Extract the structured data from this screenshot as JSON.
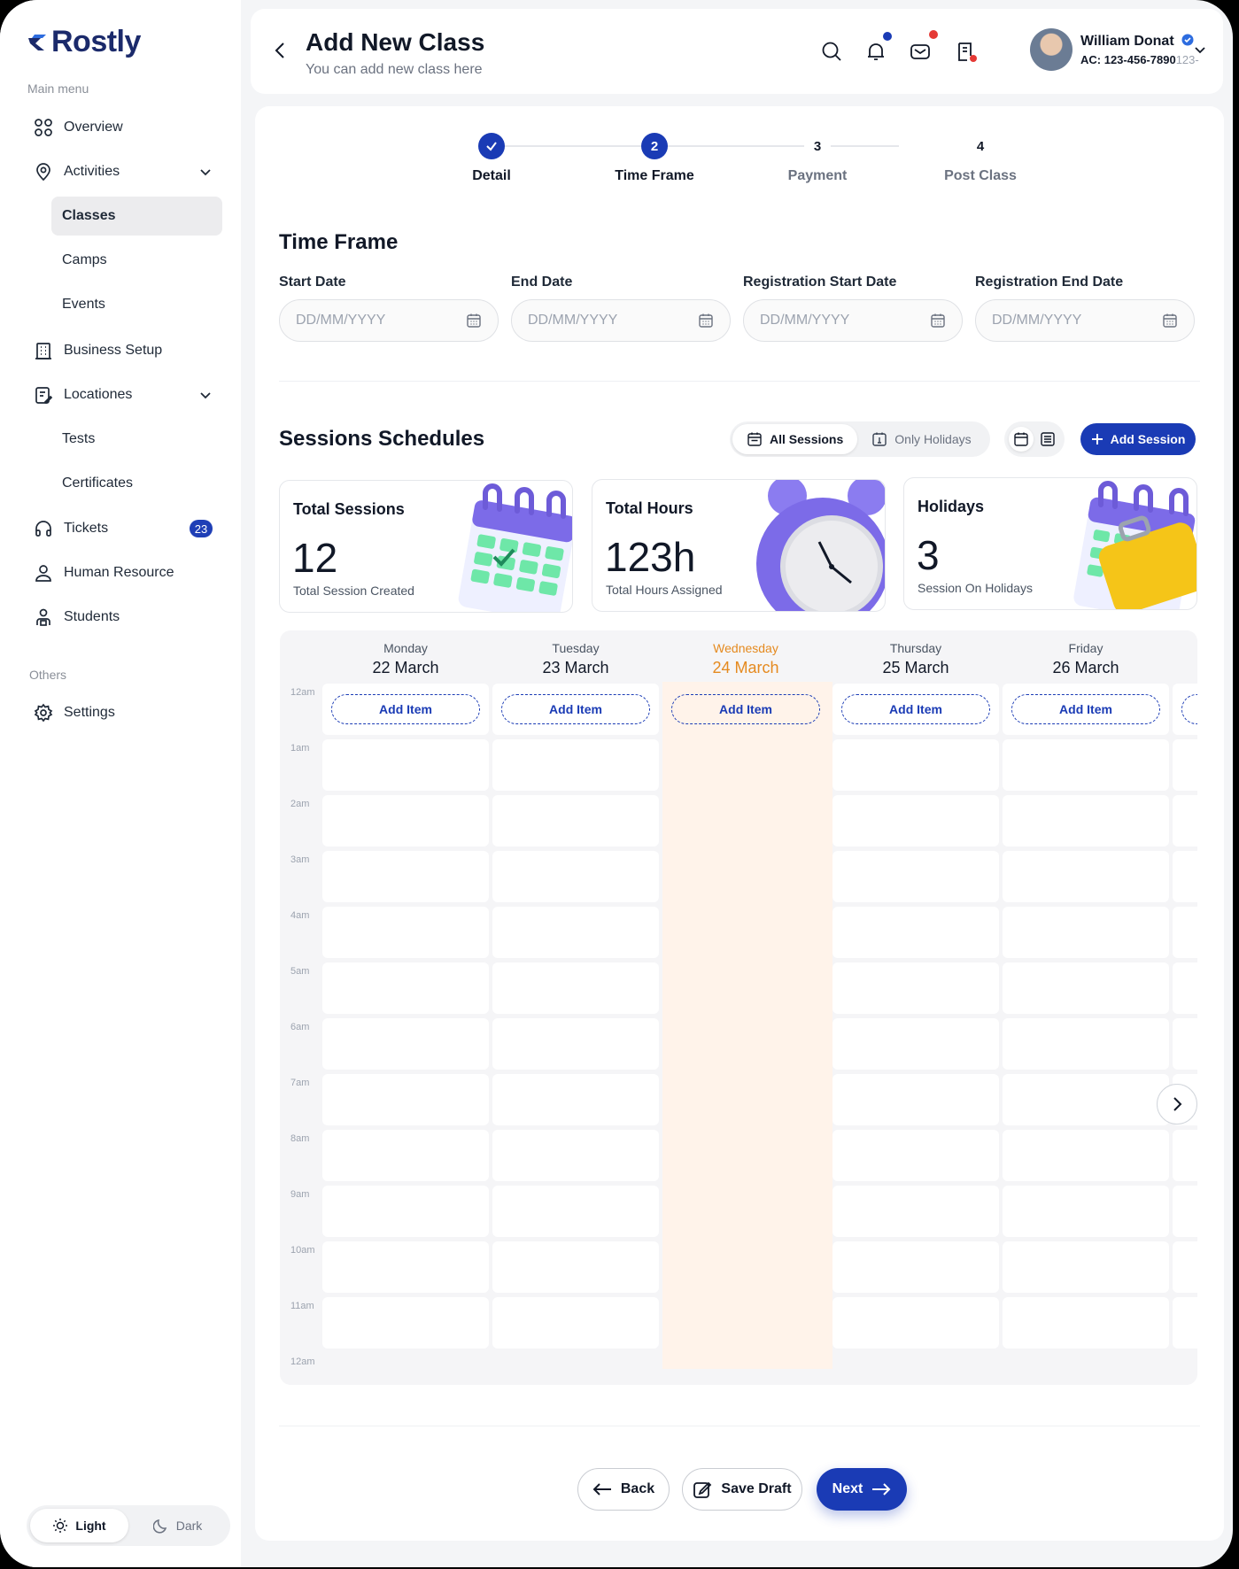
{
  "brand": {
    "name": "Rostly"
  },
  "sidebar": {
    "main_caption": "Main menu",
    "items": [
      {
        "label": "Overview"
      },
      {
        "label": "Activities"
      },
      {
        "label": "Classes"
      },
      {
        "label": "Camps"
      },
      {
        "label": "Events"
      },
      {
        "label": "Business Setup"
      },
      {
        "label": "Locationes"
      },
      {
        "label": "Tests"
      },
      {
        "label": "Certificates"
      },
      {
        "label": "Tickets",
        "badge": "23"
      },
      {
        "label": "Human Resource"
      },
      {
        "label": "Students"
      }
    ],
    "others_caption": "Others",
    "settings_label": "Settings",
    "theme": {
      "light": "Light",
      "dark": "Dark"
    }
  },
  "header": {
    "title": "Add New Class",
    "subtitle": "You can add new class here",
    "user": {
      "name": "William Donat",
      "account": "AC: 123-456-7890",
      "account_overflow": "123-"
    }
  },
  "steps": [
    {
      "number": "",
      "label": "Detail",
      "state": "done"
    },
    {
      "number": "2",
      "label": "Time Frame",
      "state": "current"
    },
    {
      "number": "3",
      "label": "Payment",
      "state": "todo"
    },
    {
      "number": "4",
      "label": "Post Class",
      "state": "todo"
    }
  ],
  "time_frame": {
    "title": "Time Frame",
    "fields": [
      {
        "label": "Start Date",
        "placeholder": "DD/MM/YYYY"
      },
      {
        "label": "End Date",
        "placeholder": "DD/MM/YYYY"
      },
      {
        "label": "Registration Start Date",
        "placeholder": "DD/MM/YYYY"
      },
      {
        "label": "Registration End Date",
        "placeholder": "DD/MM/YYYY"
      }
    ]
  },
  "sessions": {
    "title": "Sessions Schedules",
    "filter": {
      "all": "All Sessions",
      "holidays": "Only Holidays"
    },
    "add_label": "Add Session",
    "stats": [
      {
        "title": "Total Sessions",
        "value": "12",
        "sub": "Total Session Created"
      },
      {
        "title": "Total Hours",
        "value": "123h",
        "sub": "Total Hours Assigned"
      },
      {
        "title": "Holidays",
        "value": "3",
        "sub": "Session On Holidays"
      }
    ]
  },
  "calendar": {
    "days": [
      {
        "name": "Monday",
        "date": "22 March"
      },
      {
        "name": "Tuesday",
        "date": "23 March"
      },
      {
        "name": "Wednesday",
        "date": "24 March",
        "today": true
      },
      {
        "name": "Thursday",
        "date": "25 March"
      },
      {
        "name": "Friday",
        "date": "26 March"
      }
    ],
    "add_item_label": "Add Item",
    "times": [
      "12am",
      "1am",
      "2am",
      "3am",
      "4am",
      "5am",
      "6am",
      "7am",
      "8am",
      "9am",
      "10am",
      "11am",
      "12am"
    ],
    "today_color": "#e58a1f"
  },
  "footer": {
    "back": "Back",
    "save_draft": "Save Draft",
    "next": "Next"
  },
  "colors": {
    "primary": "#1a3bb5",
    "today_bg": "#fff3ea",
    "notif_blue": "#1a3bb5",
    "notif_red": "#e53935"
  }
}
